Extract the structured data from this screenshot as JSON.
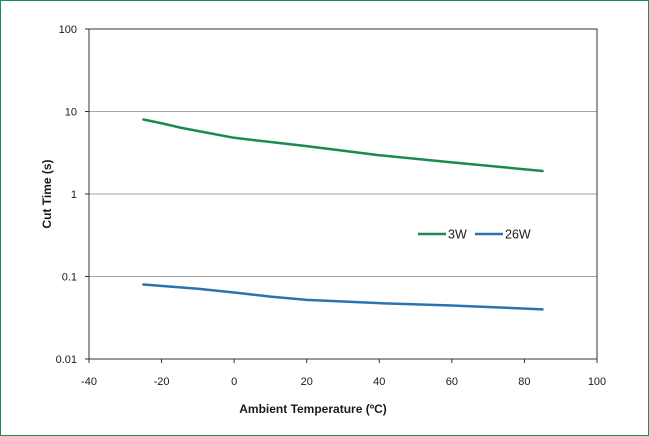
{
  "chart_data": {
    "type": "line",
    "title": "",
    "xlabel": "Ambient Temperature (ºC)",
    "ylabel": "Cut Time (s)",
    "xlim": [
      -40,
      100
    ],
    "ylim": [
      0.01,
      100
    ],
    "yscale": "log",
    "x_ticks": [
      -40,
      -20,
      0,
      20,
      40,
      60,
      80,
      100
    ],
    "y_ticks": [
      0.01,
      0.1,
      1,
      10,
      100
    ],
    "x_tick_labels": [
      "-40",
      "-20",
      "0",
      "20",
      "40",
      "60",
      "80",
      "100"
    ],
    "y_tick_labels": [
      "0.01",
      "0.1",
      "1",
      "10",
      "100"
    ],
    "grid": "horizontal",
    "legend_position": "center-right",
    "series": [
      {
        "name": "3W",
        "color": "#1a8a50",
        "x": [
          -25,
          -20,
          -15,
          -10,
          0,
          20,
          40,
          60,
          85
        ],
        "y": [
          8.0,
          7.2,
          6.4,
          5.8,
          4.8,
          3.8,
          2.95,
          2.42,
          1.9
        ]
      },
      {
        "name": "26W",
        "color": "#2b72b0",
        "x": [
          -25,
          -10,
          0,
          10,
          20,
          40,
          60,
          85
        ],
        "y": [
          0.08,
          0.071,
          0.064,
          0.057,
          0.052,
          0.0475,
          0.0445,
          0.04
        ]
      }
    ]
  }
}
